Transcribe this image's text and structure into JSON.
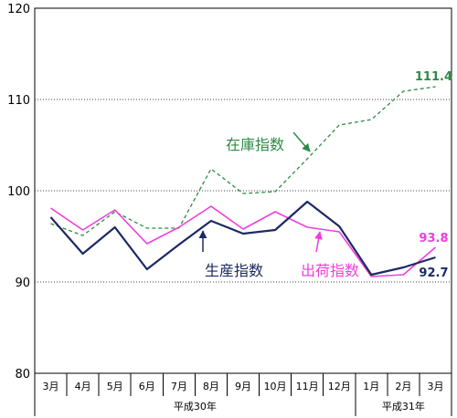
{
  "chart_data": {
    "type": "line",
    "categories": [
      "3月",
      "4月",
      "5月",
      "6月",
      "7月",
      "8月",
      "9月",
      "10月",
      "11月",
      "12月",
      "1月",
      "2月",
      "3月"
    ],
    "year_labels": [
      "平成30年",
      "平成31年"
    ],
    "ylim": [
      80,
      120
    ],
    "yticks": [
      80,
      90,
      100,
      110,
      120
    ],
    "grid": true,
    "series": [
      {
        "name": "生産指数",
        "color": "#1c2a63",
        "dashed": false,
        "values": [
          97.1,
          93.1,
          96.0,
          91.4,
          94.1,
          96.7,
          95.3,
          95.7,
          98.8,
          96.1,
          90.8,
          91.6,
          92.7
        ]
      },
      {
        "name": "出荷指数",
        "color": "#ee3fdc",
        "dashed": false,
        "values": [
          98.1,
          95.7,
          97.9,
          94.2,
          96.0,
          98.3,
          95.8,
          97.7,
          96.0,
          95.5,
          90.6,
          90.8,
          93.8
        ]
      },
      {
        "name": "在庫指数",
        "color": "#2f8a45",
        "dashed": true,
        "values": [
          96.4,
          95.1,
          97.7,
          95.9,
          95.9,
          102.4,
          99.7,
          99.9,
          103.5,
          107.2,
          107.8,
          110.9,
          111.4
        ]
      }
    ]
  }
}
